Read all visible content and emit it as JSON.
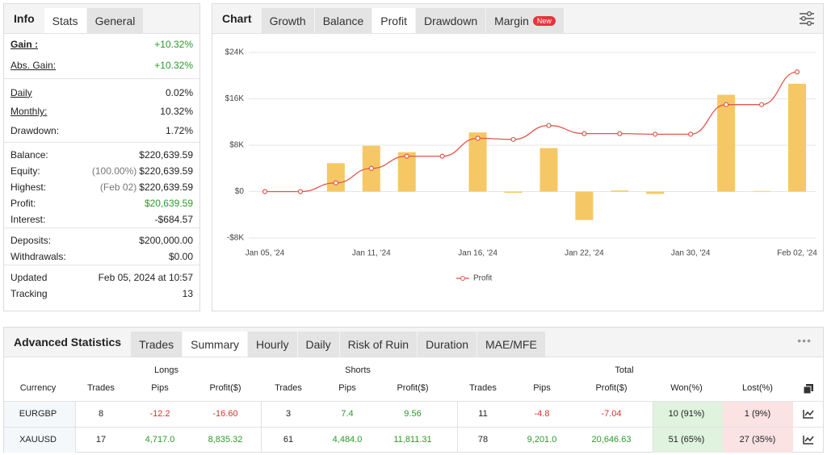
{
  "info": {
    "title": "Info",
    "tabs": [
      "Stats",
      "General"
    ],
    "active": 0,
    "sections": [
      [
        {
          "label": "Gain :",
          "value": "+10.32%",
          "color": "#2a9a2a"
        },
        {
          "label": "Abs. Gain:",
          "value": "+10.32%",
          "color": "#2a9a2a"
        }
      ],
      [
        {
          "label": "Daily",
          "value": "0.02%"
        },
        {
          "label": "Monthly:",
          "value": "10.32%"
        },
        {
          "label": "Drawdown:",
          "value": "1.72%"
        }
      ],
      [
        {
          "label": "Balance:",
          "value": "$220,639.59"
        },
        {
          "label": "Equity:",
          "note": "(100.00%)",
          "value": "$220,639.59"
        },
        {
          "label": "Highest:",
          "note": "(Feb 02)",
          "value": "$220,639.59"
        },
        {
          "label": "Profit:",
          "value": "$20,639.59",
          "color": "#2a9a2a"
        },
        {
          "label": "Interest:",
          "value": "-$684.57"
        }
      ],
      [
        {
          "label": "Deposits:",
          "value": "$200,000.00"
        },
        {
          "label": "Withdrawals:",
          "value": "$0.00"
        }
      ],
      [
        {
          "label": "Updated",
          "value": "Feb 05, 2024 at 10:57"
        },
        {
          "label": "Tracking",
          "value": "13"
        }
      ]
    ]
  },
  "chart_panel": {
    "title": "Chart",
    "tabs": [
      {
        "label": "Growth"
      },
      {
        "label": "Balance"
      },
      {
        "label": "Profit"
      },
      {
        "label": "Drawdown"
      },
      {
        "label": "Margin",
        "badge": "New"
      }
    ],
    "active": 2
  },
  "chart_data": {
    "type": "combo",
    "categories": [
      "Jan 05, '24",
      null,
      null,
      "Jan 11, '24",
      null,
      null,
      "Jan 16, '24",
      null,
      null,
      "Jan 22, '24",
      null,
      null,
      "Jan 30, '24",
      null,
      null,
      "Feb 02, '24"
    ],
    "series": [
      {
        "type": "bar",
        "color": "#f5c865",
        "values": [
          0,
          0,
          4900,
          7900,
          6800,
          0,
          10200,
          -200,
          7500,
          -4900,
          200,
          -400,
          0,
          16700,
          100,
          18600
        ]
      },
      {
        "type": "line",
        "name": "Profit",
        "color": "#e0584d",
        "values": [
          0,
          0,
          1500,
          4000,
          6100,
          6100,
          9200,
          9000,
          11400,
          10000,
          10000,
          9900,
          9900,
          15000,
          15000,
          20639.59
        ]
      }
    ],
    "ylim": [
      -8000,
      24000
    ],
    "yticks": [
      {
        "value": -8000,
        "label": "-$8K"
      },
      {
        "value": 0,
        "label": "$0"
      },
      {
        "value": 8000,
        "label": "$8K"
      },
      {
        "value": 16000,
        "label": "$16K"
      },
      {
        "value": 24000,
        "label": "$24K"
      }
    ],
    "grid": true
  },
  "advanced": {
    "title": "Advanced Statistics",
    "tabs": [
      "Trades",
      "Summary",
      "Hourly",
      "Daily",
      "Risk of Ruin",
      "Duration",
      "MAE/MFE"
    ],
    "active": 1,
    "groups": [
      "Longs",
      "Shorts",
      "Total"
    ],
    "headers": [
      "Currency",
      "Trades",
      "Pips",
      "Profit($)",
      "Trades",
      "Pips",
      "Profit($)",
      "Trades",
      "Pips",
      "Profit($)",
      "Won(%)",
      "Lost(%)"
    ],
    "rows": [
      [
        "EURGBP",
        "8",
        "-12.2",
        "-16.60",
        "3",
        "7.4",
        "9.56",
        "11",
        "-4.8",
        "-7.04",
        "10 (91%)",
        "1 (9%)"
      ],
      [
        "XAUUSD",
        "17",
        "4,717.0",
        "8,835.32",
        "61",
        "4,484.0",
        "11,811.31",
        "78",
        "9,201.0",
        "20,646.63",
        "51 (65%)",
        "27 (35%)"
      ]
    ]
  }
}
